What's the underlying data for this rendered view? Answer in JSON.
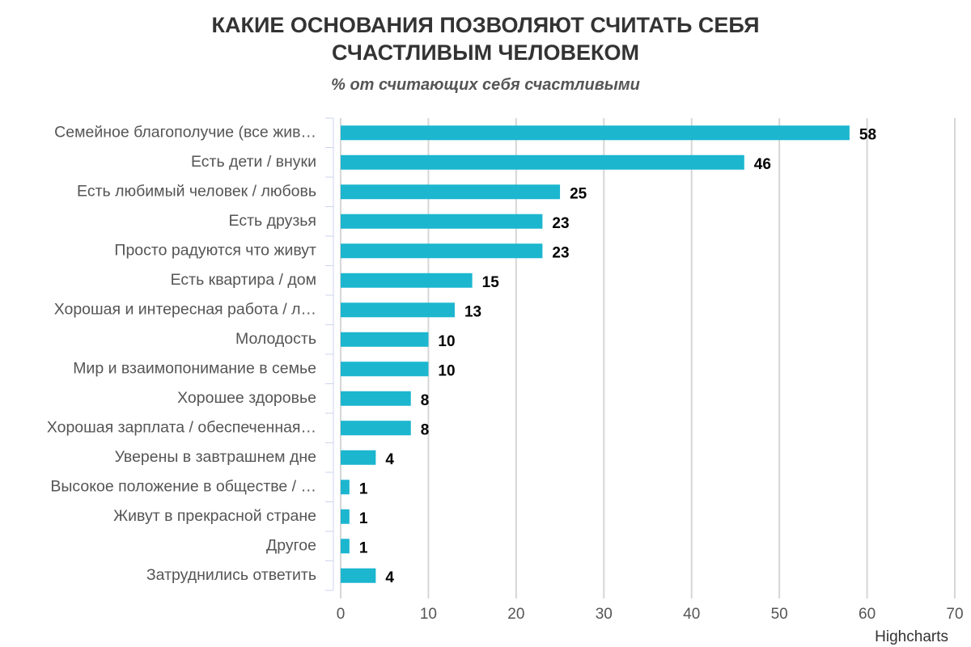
{
  "chart_data": {
    "type": "bar",
    "orientation": "horizontal",
    "title": "КАКИЕ ОСНОВАНИЯ ПОЗВОЛЯЮТ СЧИТАТЬ СЕБЯ СЧАСТЛИВЫМ ЧЕЛОВЕКОМ",
    "subtitle": "% от считающих себя счастливыми",
    "categories": [
      "Семейное благополучие (все жив…",
      "Есть дети / внуки",
      "Есть любимый человек / любовь",
      "Есть друзья",
      "Просто радуются что живут",
      "Есть квартира / дом",
      "Хорошая и интересная работа / л…",
      "Молодость",
      "Мир и взаимопонимание в семье",
      "Хорошее здоровье",
      "Хорошая зарплата / обеспеченная…",
      "Уверены в завтрашнем дне",
      "Высокое положение в обществе / …",
      "Живут в прекрасной стране",
      "Другое",
      "Затруднились ответить"
    ],
    "values": [
      58,
      46,
      25,
      23,
      23,
      15,
      13,
      10,
      10,
      8,
      8,
      4,
      1,
      1,
      1,
      4
    ],
    "color": "#1cb6cf",
    "xlim": [
      0,
      70
    ],
    "xticks": [
      0,
      10,
      20,
      30,
      40,
      50,
      60,
      70
    ],
    "grid": true,
    "credits": "Highcharts"
  }
}
